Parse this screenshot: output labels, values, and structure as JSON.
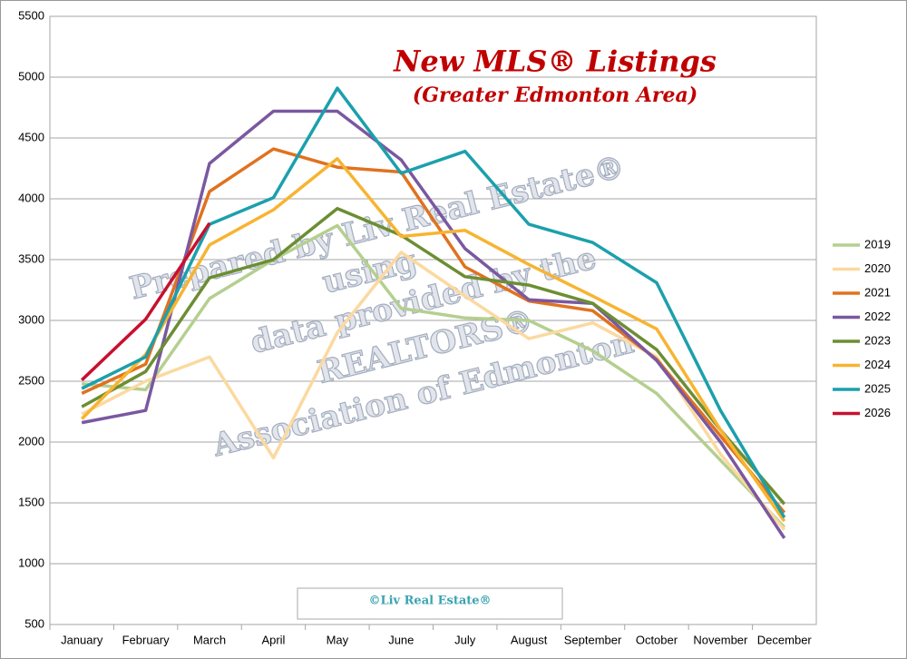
{
  "chart_data": {
    "type": "line",
    "title": "New MLS® Listings",
    "subtitle": "(Greater Edmonton Area)",
    "watermark": [
      "Prepared by Liv Real Estate®",
      "using",
      "data provided by the",
      "REALTORS®",
      "Association of Edmonton"
    ],
    "footer": "©Liv Real Estate®",
    "categories": [
      "January",
      "February",
      "March",
      "April",
      "May",
      "June",
      "July",
      "August",
      "September",
      "October",
      "November",
      "December"
    ],
    "ylim": [
      500,
      5500
    ],
    "yticks": [
      500,
      1000,
      1500,
      2000,
      2500,
      3000,
      3500,
      4000,
      4500,
      5000,
      5500
    ],
    "grid": true,
    "legend": "right",
    "series": [
      {
        "name": "2019",
        "color": "#b5cf8f",
        "values": [
          2480,
          2430,
          3180,
          3500,
          3780,
          3100,
          3020,
          3000,
          2750,
          2400,
          1850,
          1300
        ]
      },
      {
        "name": "2020",
        "color": "#fbd9a0",
        "values": [
          2230,
          2500,
          2700,
          1870,
          2900,
          3560,
          3200,
          2850,
          2980,
          2700,
          1900,
          1280
        ]
      },
      {
        "name": "2021",
        "color": "#e0721f",
        "values": [
          2400,
          2640,
          4060,
          4410,
          4260,
          4220,
          3440,
          3160,
          3080,
          2680,
          2050,
          1420
        ]
      },
      {
        "name": "2022",
        "color": "#7a58a0",
        "values": [
          2160,
          2260,
          4290,
          4720,
          4720,
          4320,
          3590,
          3170,
          3140,
          2670,
          2000,
          1210
        ]
      },
      {
        "name": "2023",
        "color": "#6c8e33",
        "values": [
          2290,
          2580,
          3350,
          3500,
          3920,
          3700,
          3360,
          3290,
          3140,
          2760,
          2100,
          1490
        ]
      },
      {
        "name": "2024",
        "color": "#f7b431",
        "values": [
          2190,
          2720,
          3620,
          3910,
          4330,
          3690,
          3740,
          3460,
          3200,
          2930,
          2100,
          1350
        ]
      },
      {
        "name": "2025",
        "color": "#1ba0ac",
        "values": [
          2440,
          2700,
          3790,
          4010,
          4910,
          4210,
          4390,
          3790,
          3640,
          3310,
          2260,
          1380
        ]
      },
      {
        "name": "2026",
        "color": "#c8102e",
        "values": [
          2510,
          3010,
          3800,
          null,
          null,
          null,
          null,
          null,
          null,
          null,
          null,
          null
        ]
      }
    ]
  }
}
